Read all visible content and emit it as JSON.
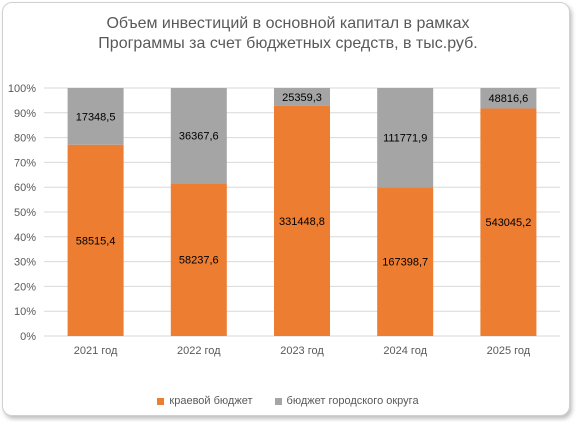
{
  "chart_data": {
    "type": "bar",
    "stacked": "percent",
    "title_line1": "Объем инвестиций в основной капитал в рамках",
    "title_line2": "Программы за счет бюджетных средств, в тыс.руб.",
    "categories": [
      "2021 год",
      "2022 год",
      "2023 год",
      "2024 год",
      "2025 год"
    ],
    "series": [
      {
        "name": "краевой бюджет",
        "color": "#ED7D31",
        "values": [
          58515.4,
          58237.6,
          331448.8,
          167398.7,
          543045.2
        ],
        "labels": [
          "58515,4",
          "58237,6",
          "331448,8",
          "167398,7",
          "543045,2"
        ]
      },
      {
        "name": "бюджет городского округа",
        "color": "#A5A5A5",
        "values": [
          17348.5,
          36367.6,
          25359.3,
          111771.9,
          48816.6
        ],
        "labels": [
          "17348,5",
          "36367,6",
          "25359,3",
          "111771,9",
          "48816,6"
        ]
      }
    ],
    "y_ticks": [
      "0%",
      "10%",
      "20%",
      "30%",
      "40%",
      "50%",
      "60%",
      "70%",
      "80%",
      "90%",
      "100%"
    ],
    "ylim": [
      0,
      100
    ],
    "grid": true,
    "legend_position": "bottom"
  }
}
